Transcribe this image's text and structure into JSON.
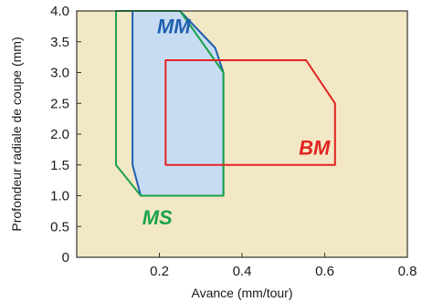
{
  "chart_data": {
    "type": "area",
    "xlabel": "Avance (mm/tour)",
    "ylabel": "Profondeur radiale de coupe (mm)",
    "xlim": [
      0,
      0.8
    ],
    "ylim": [
      0,
      4.0
    ],
    "x_ticks": [
      "0.2",
      "0.4",
      "0.6",
      "0.8"
    ],
    "y_ticks": [
      "0",
      "0.5",
      "1.0",
      "1.5",
      "2.0",
      "2.5",
      "3.0",
      "3.5",
      "4.0"
    ],
    "grid": false,
    "plot_background": "#f3e8c5",
    "series": [
      {
        "name": "MM",
        "label_at": [
          0.235,
          3.72
        ],
        "color": "#1f5fb0",
        "fill": "#c7dcf3",
        "points": [
          [
            0.135,
            4.0
          ],
          [
            0.135,
            1.5
          ],
          [
            0.155,
            1.0
          ],
          [
            0.355,
            1.0
          ],
          [
            0.355,
            3.0
          ],
          [
            0.335,
            3.4
          ],
          [
            0.25,
            4.0
          ]
        ]
      },
      {
        "name": "MS",
        "label_at": [
          0.195,
          0.62
        ],
        "color": "#1aa24a",
        "fill": "none",
        "points": [
          [
            0.11,
            4.0
          ],
          [
            0.25,
            4.0
          ],
          [
            0.355,
            3.0
          ],
          [
            0.355,
            1.0
          ],
          [
            0.155,
            1.0
          ],
          [
            0.095,
            1.5
          ],
          [
            0.095,
            4.0
          ]
        ]
      },
      {
        "name": "BM",
        "label_at": [
          0.575,
          1.75
        ],
        "color": "#e32322",
        "fill": "none",
        "points": [
          [
            0.215,
            3.2
          ],
          [
            0.555,
            3.2
          ],
          [
            0.625,
            2.5
          ],
          [
            0.625,
            1.5
          ],
          [
            0.215,
            1.5
          ]
        ]
      }
    ]
  }
}
